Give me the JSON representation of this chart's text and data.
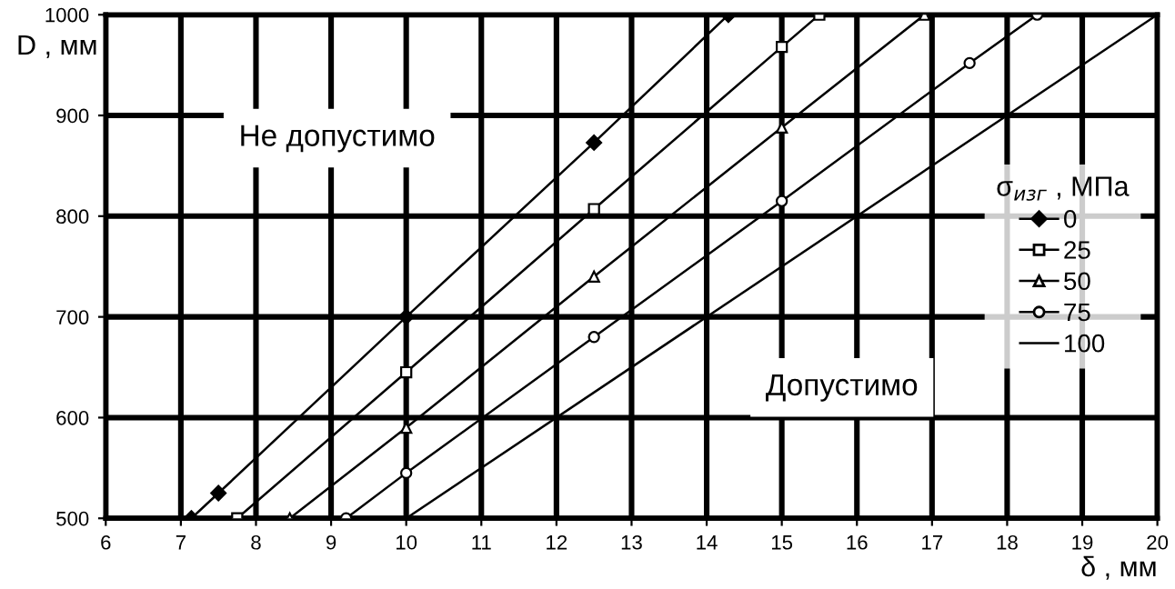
{
  "chart_data": {
    "type": "line",
    "xlabel": "δ , мм",
    "ylabel": "D , мм",
    "legend_title": "σ$_{изг}$ , МПа",
    "xlim": [
      6,
      20
    ],
    "ylim": [
      500,
      1000
    ],
    "xticks": [
      6,
      7,
      8,
      9,
      10,
      11,
      12,
      13,
      14,
      15,
      16,
      17,
      18,
      19,
      20
    ],
    "yticks": [
      500,
      600,
      700,
      800,
      900,
      1000
    ],
    "grid": true,
    "legend": "right",
    "annotations": [
      "Не допустимо",
      "Допустимо"
    ],
    "series": [
      {
        "name": "0",
        "color": "#000000",
        "marker": "diamond",
        "x": [
          7.14,
          7.5,
          10,
          12.5,
          14.29
        ],
        "values": [
          500,
          525,
          700,
          873,
          1000
        ]
      },
      {
        "name": "25",
        "color": "#000000",
        "marker": "square",
        "x": [
          7.75,
          10,
          12.5,
          15,
          15.5
        ],
        "values": [
          500,
          645,
          807,
          968,
          1000
        ]
      },
      {
        "name": "50",
        "color": "#000000",
        "marker": "triangle",
        "x": [
          8.45,
          10,
          12.5,
          15,
          16.9
        ],
        "values": [
          500,
          590,
          740,
          888,
          1000
        ]
      },
      {
        "name": "75",
        "color": "#000000",
        "marker": "circle",
        "x": [
          9.2,
          10,
          12.5,
          15,
          17.5,
          18.4
        ],
        "values": [
          500,
          545,
          680,
          815,
          952,
          1000
        ]
      },
      {
        "name": "100",
        "color": "#000000",
        "marker": "none",
        "x": [
          10,
          20
        ],
        "values": [
          500,
          1000
        ]
      }
    ]
  }
}
